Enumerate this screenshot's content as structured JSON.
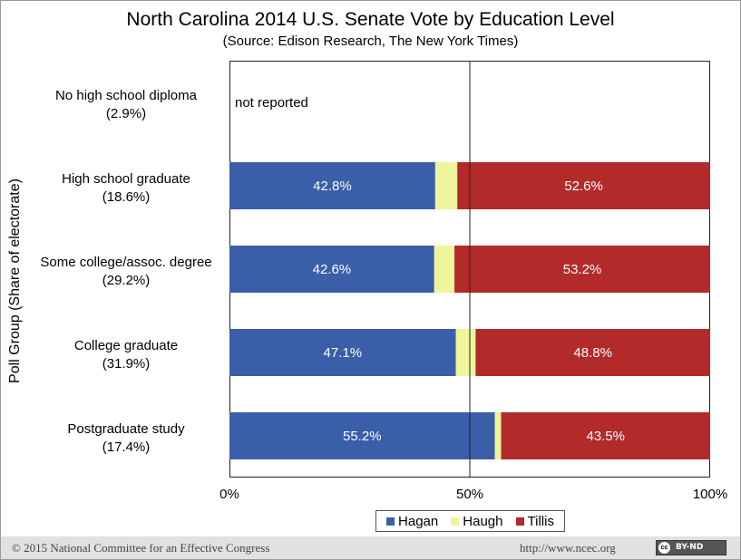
{
  "colors": {
    "Hagan": "#3a5ea8",
    "Haugh": "#eef59a",
    "Tillis": "#b22a2a"
  },
  "chart_data": {
    "type": "bar",
    "orientation": "horizontal",
    "stacked": true,
    "title": "North Carolina 2014 U.S. Senate Vote by Education Level",
    "subtitle": "(Source: Edison Research, The New York Times)",
    "ylabel": "Poll Group (Share of electorate)",
    "xlabel": "",
    "xlim": [
      0,
      100
    ],
    "x_ticks": [
      "0%",
      "50%",
      "100%"
    ],
    "reference_line": 50,
    "legend": {
      "position": "bottom-right",
      "entries": [
        "Hagan",
        "Haugh",
        "Tillis"
      ]
    },
    "categories": [
      {
        "name": "No high school diploma",
        "share": "(2.9%)"
      },
      {
        "name": "High school graduate",
        "share": "(18.6%)"
      },
      {
        "name": "Some college/assoc. degree",
        "share": "(29.2%)"
      },
      {
        "name": "College graduate",
        "share": "(31.9%)"
      },
      {
        "name": "Postgraduate study",
        "share": "(17.4%)"
      }
    ],
    "series": [
      {
        "name": "Hagan",
        "values": [
          null,
          42.8,
          42.6,
          47.1,
          55.2
        ],
        "labels": [
          "",
          "42.8%",
          "42.6%",
          "47.1%",
          "55.2%"
        ]
      },
      {
        "name": "Haugh",
        "values": [
          null,
          4.6,
          4.2,
          4.1,
          1.3
        ],
        "labels": [
          "",
          "",
          "",
          "",
          ""
        ]
      },
      {
        "name": "Tillis",
        "values": [
          null,
          52.6,
          53.2,
          48.8,
          43.5
        ],
        "labels": [
          "",
          "52.6%",
          "53.2%",
          "48.8%",
          "43.5%"
        ]
      }
    ],
    "annotations": [
      {
        "category_index": 0,
        "text": "not reported"
      }
    ]
  },
  "footer": {
    "copyright": "© 2015 National Committee for an Effective Congress",
    "url": "http://www.ncec.org",
    "license_icon": "cc",
    "license": "BY-ND"
  }
}
